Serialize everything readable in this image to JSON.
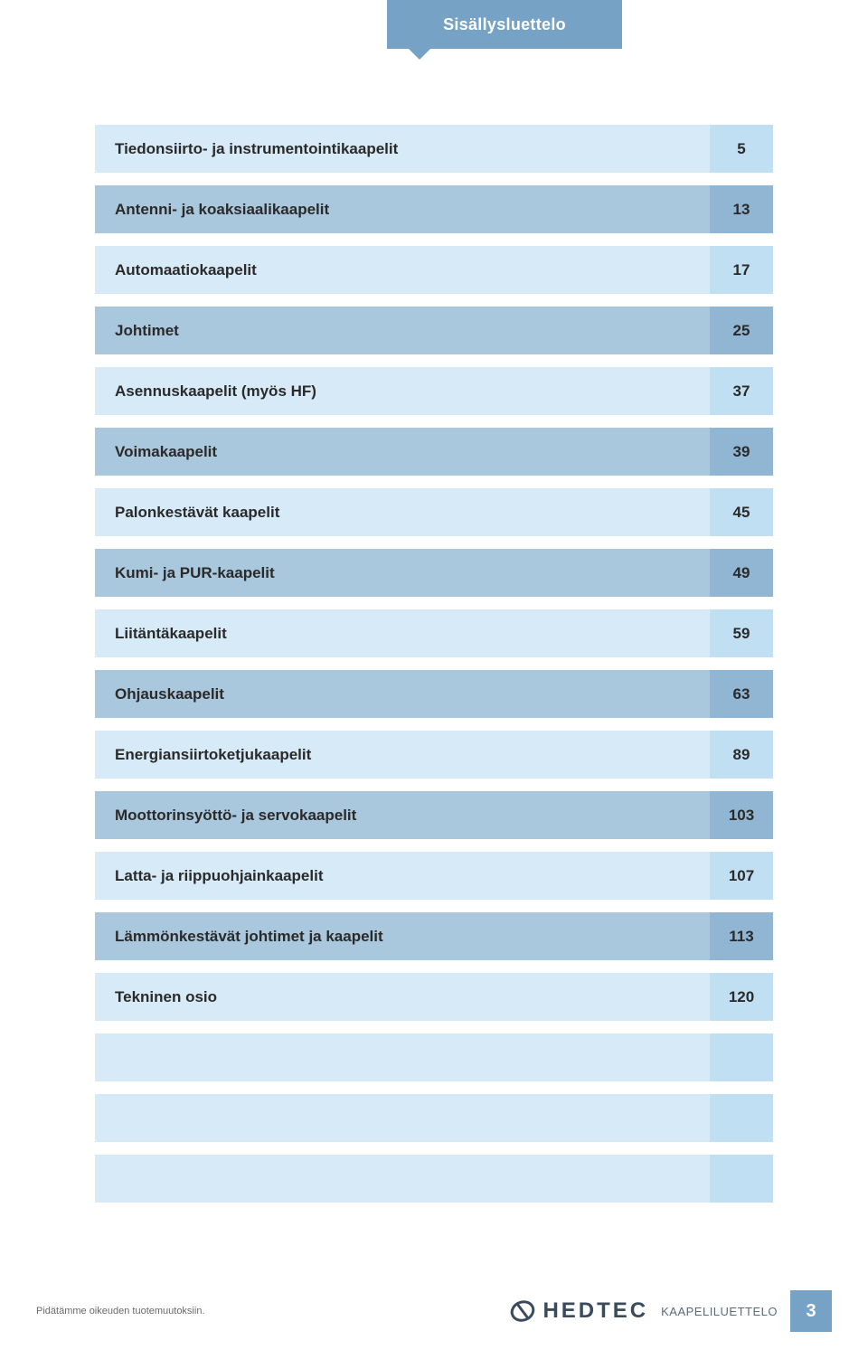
{
  "tab_title": "Sisällysluettelo",
  "toc_rows": [
    {
      "label": "Tiedonsiirto- ja instrumentointikaapelit",
      "page": "5",
      "shade": "light"
    },
    {
      "label": "Antenni- ja koaksiaalikaapelit",
      "page": "13",
      "shade": "dark"
    },
    {
      "label": "Automaatiokaapelit",
      "page": "17",
      "shade": "light"
    },
    {
      "label": "Johtimet",
      "page": "25",
      "shade": "dark"
    },
    {
      "label": "Asennuskaapelit (myös HF)",
      "page": "37",
      "shade": "light"
    },
    {
      "label": "Voimakaapelit",
      "page": "39",
      "shade": "dark"
    },
    {
      "label": "Palonkestävät kaapelit",
      "page": "45",
      "shade": "light"
    },
    {
      "label": "Kumi- ja PUR-kaapelit",
      "page": "49",
      "shade": "dark"
    },
    {
      "label": "Liitäntäkaapelit",
      "page": "59",
      "shade": "light"
    },
    {
      "label": "Ohjauskaapelit",
      "page": "63",
      "shade": "dark"
    },
    {
      "label": "Energiansiirtoketjukaapelit",
      "page": "89",
      "shade": "light"
    },
    {
      "label": "Moottorinsyöttö- ja servokaapelit",
      "page": "103",
      "shade": "dark"
    },
    {
      "label": "Latta- ja riippuohjainkaapelit",
      "page": "107",
      "shade": "light"
    },
    {
      "label": "Lämmönkestävät johtimet ja kaapelit",
      "page": "113",
      "shade": "dark"
    },
    {
      "label": "Tekninen osio",
      "page": "120",
      "shade": "light"
    }
  ],
  "blank_rows_after": 3,
  "footer": {
    "disclaimer": "Pidätämme oikeuden tuotemuutoksiin.",
    "brand": "HEDTEC",
    "catalog": "KAAPELILUETTELO",
    "page_number": "3"
  },
  "colors": {
    "tab_bg": "#76a2c6",
    "light_label_bg": "#d7eaf7",
    "light_num_bg": "#c1dff2",
    "dark_label_bg": "#a9c7dd",
    "dark_num_bg": "#90b6d3",
    "text": "#2a2a2a",
    "brand_text": "#3a4b5c",
    "page_badge_bg": "#76a2c6"
  }
}
